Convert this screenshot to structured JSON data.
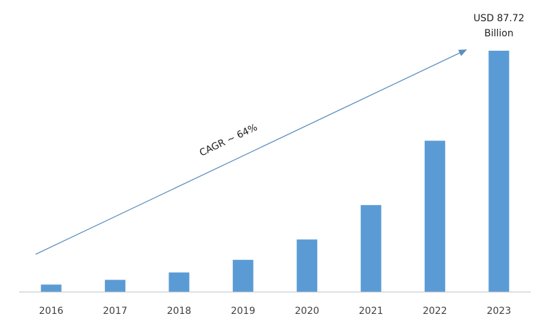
{
  "chart_data": {
    "type": "bar",
    "categories": [
      "2016",
      "2017",
      "2018",
      "2019",
      "2020",
      "2021",
      "2022",
      "2023"
    ],
    "values": [
      2.7,
      4.4,
      7.1,
      11.7,
      19.1,
      31.6,
      55.0,
      87.72
    ],
    "ylim": [
      0,
      88
    ],
    "grid": false,
    "legend": "none",
    "bar_color": "#5b9bd5",
    "annotations": {
      "top_value_line1": "USD 87.72",
      "top_value_line2": "Billion",
      "cagr": "CAGR ~ 64%"
    },
    "colors": {
      "bar": "#5b9bd5",
      "arrow": "#5b8fbf",
      "axis": "#bfbfbf",
      "text": "#404040"
    }
  }
}
